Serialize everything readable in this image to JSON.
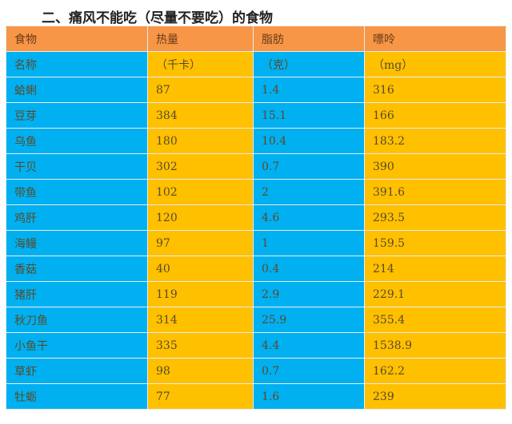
{
  "title": "二、痛风不能吃（尽量不要吃）的食物",
  "colors": {
    "header": "#f79646",
    "blue": "#00b0f0",
    "gold": "#ffc000"
  },
  "table": {
    "headers": [
      "食物",
      "热量",
      "脂肪",
      "嘌呤"
    ],
    "units": [
      "名称",
      "（千卡）",
      "（克）",
      "（mg）"
    ],
    "rows": [
      [
        "蛤蜊",
        "87",
        "1.4",
        "316"
      ],
      [
        "豆芽",
        "384",
        "15.1",
        "166"
      ],
      [
        "乌鱼",
        "180",
        "10.4",
        "183.2"
      ],
      [
        "干贝",
        "302",
        "0.7",
        "390"
      ],
      [
        "带鱼",
        "102",
        "2",
        "391.6"
      ],
      [
        "鸡肝",
        "120",
        "4.6",
        "293.5"
      ],
      [
        "海鳗",
        "97",
        "1",
        "159.5"
      ],
      [
        "香菇",
        "40",
        "0.4",
        "214"
      ],
      [
        "猪肝",
        "119",
        "2.9",
        "229.1"
      ],
      [
        "秋刀鱼",
        "314",
        "25.9",
        "355.4"
      ],
      [
        "小鱼干",
        "335",
        "4.4",
        "1538.9"
      ],
      [
        "草虾",
        "98",
        "0.7",
        "162.2"
      ],
      [
        "牡蛎",
        "77",
        "1.6",
        "239"
      ]
    ]
  }
}
